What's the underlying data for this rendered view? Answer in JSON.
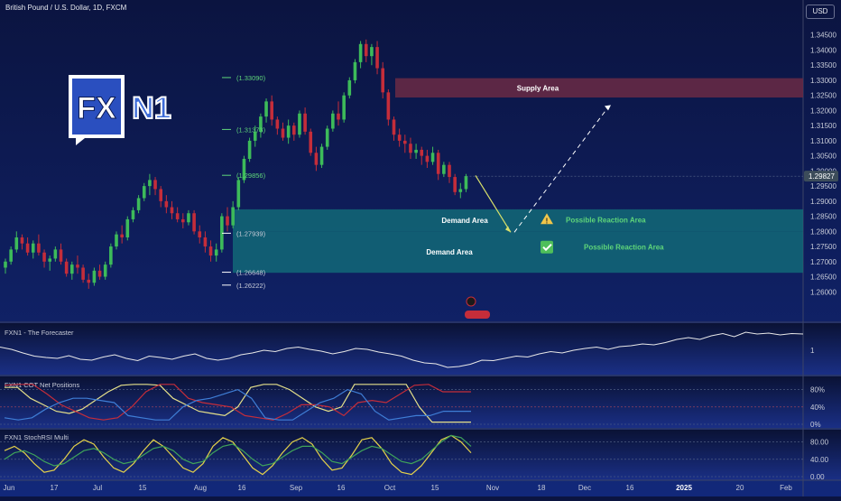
{
  "header": {
    "title": "British Pound / U.S. Dollar, 1D, FXCM",
    "currency_button": "USD"
  },
  "colors": {
    "up": "#3dbb5a",
    "down": "#c42d3a",
    "fib": "#5fd67a",
    "demand": "#13737b",
    "supply": "#6b2a44",
    "bg_top": "#0b1440",
    "bg_bottom": "#12287a"
  },
  "logo": {
    "fx": "FX",
    "n1": "N1"
  },
  "chart_data": [
    {
      "type": "candlestick",
      "title": "British Pound / U.S. Dollar, 1D, FXCM",
      "y_axis": {
        "min": 1.255,
        "max": 1.35,
        "ticks": [
          "1.34500",
          "1.34000",
          "1.33500",
          "1.33000",
          "1.32500",
          "1.32000",
          "1.31500",
          "1.31000",
          "1.30500",
          "1.30000",
          "1.29500",
          "1.29000",
          "1.28500",
          "1.28000",
          "1.27500",
          "1.27000",
          "1.26500",
          "1.26000"
        ]
      },
      "last_price": "1.29827",
      "fib_levels": [
        "(1.33090)",
        "(1.31373)",
        "(1.29856)",
        "(1.27939)",
        "(1.26648)",
        "(1.26222)"
      ],
      "zones": [
        {
          "label": "Supply Area",
          "from": 1.3243,
          "to": 1.3307
        },
        {
          "label": "Demand Area",
          "from": 1.28,
          "to": 1.2873
        },
        {
          "label": "Demand Area",
          "from": 1.2663,
          "to": 1.28
        }
      ],
      "reaction_labels": [
        "Possible Reaction Area",
        "Possible Reaction Area"
      ],
      "candles": [
        [
          1.268,
          1.271,
          1.266,
          1.27
        ],
        [
          1.27,
          1.275,
          1.269,
          1.274
        ],
        [
          1.274,
          1.28,
          1.273,
          1.278
        ],
        [
          1.278,
          1.279,
          1.274,
          1.276
        ],
        [
          1.276,
          1.278,
          1.272,
          1.273
        ],
        [
          1.273,
          1.277,
          1.271,
          1.276
        ],
        [
          1.276,
          1.279,
          1.272,
          1.273
        ],
        [
          1.273,
          1.274,
          1.268,
          1.27
        ],
        [
          1.27,
          1.272,
          1.267,
          1.271
        ],
        [
          1.271,
          1.275,
          1.27,
          1.274
        ],
        [
          1.274,
          1.276,
          1.269,
          1.27
        ],
        [
          1.27,
          1.271,
          1.265,
          1.266
        ],
        [
          1.266,
          1.27,
          1.264,
          1.269
        ],
        [
          1.269,
          1.272,
          1.266,
          1.268
        ],
        [
          1.268,
          1.269,
          1.263,
          1.264
        ],
        [
          1.264,
          1.266,
          1.261,
          1.263
        ],
        [
          1.263,
          1.268,
          1.262,
          1.267
        ],
        [
          1.267,
          1.269,
          1.264,
          1.265
        ],
        [
          1.265,
          1.27,
          1.264,
          1.269
        ],
        [
          1.269,
          1.276,
          1.268,
          1.275
        ],
        [
          1.275,
          1.28,
          1.274,
          1.279
        ],
        [
          1.279,
          1.282,
          1.276,
          1.278
        ],
        [
          1.278,
          1.285,
          1.277,
          1.284
        ],
        [
          1.284,
          1.288,
          1.283,
          1.287
        ],
        [
          1.287,
          1.292,
          1.286,
          1.291
        ],
        [
          1.291,
          1.296,
          1.29,
          1.295
        ],
        [
          1.295,
          1.299,
          1.292,
          1.297
        ],
        [
          1.297,
          1.298,
          1.292,
          1.294
        ],
        [
          1.294,
          1.295,
          1.288,
          1.29
        ],
        [
          1.29,
          1.292,
          1.286,
          1.288
        ],
        [
          1.288,
          1.29,
          1.284,
          1.286
        ],
        [
          1.286,
          1.288,
          1.283,
          1.284
        ],
        [
          1.284,
          1.286,
          1.281,
          1.283
        ],
        [
          1.283,
          1.287,
          1.282,
          1.286
        ],
        [
          1.286,
          1.287,
          1.279,
          1.28
        ],
        [
          1.28,
          1.282,
          1.276,
          1.278
        ],
        [
          1.278,
          1.28,
          1.273,
          1.275
        ],
        [
          1.275,
          1.277,
          1.27,
          1.272
        ],
        [
          1.272,
          1.276,
          1.27,
          1.274
        ],
        [
          1.274,
          1.286,
          1.273,
          1.285
        ],
        [
          1.285,
          1.288,
          1.28,
          1.282
        ],
        [
          1.282,
          1.29,
          1.281,
          1.288
        ],
        [
          1.288,
          1.298,
          1.287,
          1.297
        ],
        [
          1.297,
          1.305,
          1.296,
          1.304
        ],
        [
          1.304,
          1.311,
          1.303,
          1.31
        ],
        [
          1.31,
          1.315,
          1.308,
          1.313
        ],
        [
          1.313,
          1.319,
          1.311,
          1.318
        ],
        [
          1.318,
          1.324,
          1.316,
          1.323
        ],
        [
          1.323,
          1.325,
          1.315,
          1.317
        ],
        [
          1.317,
          1.318,
          1.312,
          1.314
        ],
        [
          1.314,
          1.316,
          1.31,
          1.311
        ],
        [
          1.311,
          1.317,
          1.309,
          1.315
        ],
        [
          1.315,
          1.316,
          1.31,
          1.312
        ],
        [
          1.312,
          1.32,
          1.311,
          1.319
        ],
        [
          1.319,
          1.321,
          1.312,
          1.313
        ],
        [
          1.313,
          1.314,
          1.305,
          1.306
        ],
        [
          1.306,
          1.308,
          1.3,
          1.302
        ],
        [
          1.302,
          1.309,
          1.301,
          1.308
        ],
        [
          1.308,
          1.315,
          1.307,
          1.314
        ],
        [
          1.314,
          1.32,
          1.313,
          1.319
        ],
        [
          1.319,
          1.323,
          1.315,
          1.317
        ],
        [
          1.317,
          1.326,
          1.316,
          1.325
        ],
        [
          1.325,
          1.331,
          1.324,
          1.33
        ],
        [
          1.33,
          1.337,
          1.329,
          1.336
        ],
        [
          1.336,
          1.343,
          1.334,
          1.342
        ],
        [
          1.342,
          1.3435,
          1.336,
          1.338
        ],
        [
          1.338,
          1.342,
          1.335,
          1.341
        ],
        [
          1.341,
          1.343,
          1.332,
          1.334
        ],
        [
          1.334,
          1.336,
          1.324,
          1.326
        ],
        [
          1.326,
          1.327,
          1.315,
          1.317
        ],
        [
          1.317,
          1.318,
          1.31,
          1.312
        ],
        [
          1.312,
          1.314,
          1.308,
          1.31
        ],
        [
          1.31,
          1.312,
          1.306,
          1.309
        ],
        [
          1.309,
          1.311,
          1.304,
          1.306
        ],
        [
          1.306,
          1.309,
          1.304,
          1.307
        ],
        [
          1.307,
          1.308,
          1.302,
          1.305
        ],
        [
          1.305,
          1.307,
          1.301,
          1.303
        ],
        [
          1.303,
          1.308,
          1.302,
          1.306
        ],
        [
          1.306,
          1.307,
          1.297,
          1.299
        ],
        [
          1.299,
          1.303,
          1.298,
          1.302
        ],
        [
          1.302,
          1.303,
          1.296,
          1.298
        ],
        [
          1.298,
          1.299,
          1.292,
          1.293
        ],
        [
          1.293,
          1.296,
          1.291,
          1.294
        ],
        [
          1.294,
          1.299,
          1.293,
          1.2983
        ]
      ],
      "x_labels": [
        "Jun",
        "17",
        "Jul",
        "15",
        "Aug",
        "16",
        "Sep",
        "16",
        "Oct",
        "15",
        "Nov",
        "18",
        "Dec",
        "16",
        "2025",
        "20",
        "Feb"
      ]
    },
    {
      "type": "line",
      "title": "FXN1 - The Forecaster",
      "axis_label": "1",
      "series": [
        {
          "values": [
            0.55,
            0.5,
            0.42,
            0.35,
            0.32,
            0.3,
            0.36,
            0.28,
            0.26,
            0.33,
            0.38,
            0.3,
            0.25,
            0.35,
            0.32,
            0.28,
            0.35,
            0.4,
            0.3,
            0.26,
            0.3,
            0.38,
            0.42,
            0.48,
            0.45,
            0.52,
            0.55,
            0.5,
            0.46,
            0.4,
            0.45,
            0.52,
            0.5,
            0.44,
            0.4,
            0.35,
            0.26,
            0.2,
            0.18,
            0.1,
            0.12,
            0.17,
            0.26,
            0.25,
            0.3,
            0.35,
            0.33,
            0.4,
            0.45,
            0.42,
            0.48,
            0.52,
            0.55,
            0.5,
            0.56,
            0.58,
            0.62,
            0.6,
            0.65,
            0.72,
            0.76,
            0.72,
            0.8,
            0.85,
            0.78,
            0.88,
            0.84,
            0.86,
            0.82,
            0.85,
            0.84
          ]
        }
      ]
    },
    {
      "type": "line",
      "title": "FXN1 COT Net Positions",
      "y_ticks": [
        "80%",
        "40%",
        "0%"
      ],
      "series": [
        {
          "name": "",
          "color": "#e5e08a",
          "values": [
            0.85,
            0.85,
            0.6,
            0.45,
            0.3,
            0.25,
            0.35,
            0.55,
            0.75,
            0.9,
            0.92,
            0.92,
            0.9,
            0.6,
            0.45,
            0.3,
            0.25,
            0.2,
            0.4,
            0.85,
            0.92,
            0.92,
            0.8,
            0.6,
            0.4,
            0.3,
            0.4,
            0.92,
            0.92,
            0.92,
            0.92,
            0.92,
            0.4,
            0.05,
            0.05,
            0.05,
            0.05
          ]
        },
        {
          "name": "",
          "color": "#c42d3a",
          "values": [
            0.9,
            0.92,
            0.92,
            0.7,
            0.45,
            0.3,
            0.15,
            0.1,
            0.15,
            0.4,
            0.75,
            0.92,
            0.92,
            0.6,
            0.5,
            0.45,
            0.4,
            0.2,
            0.15,
            0.1,
            0.25,
            0.45,
            0.45,
            0.4,
            0.2,
            0.5,
            0.55,
            0.5,
            0.7,
            0.9,
            0.92,
            0.75,
            0.75,
            0.75
          ]
        },
        {
          "name": "",
          "color": "#3f7ed6",
          "values": [
            0.15,
            0.1,
            0.15,
            0.35,
            0.5,
            0.6,
            0.6,
            0.55,
            0.5,
            0.2,
            0.15,
            0.1,
            0.1,
            0.4,
            0.55,
            0.6,
            0.7,
            0.8,
            0.6,
            0.15,
            0.1,
            0.1,
            0.3,
            0.5,
            0.6,
            0.8,
            0.7,
            0.3,
            0.1,
            0.15,
            0.2,
            0.2,
            0.3,
            0.3,
            0.3
          ]
        }
      ]
    },
    {
      "type": "line",
      "title": "FXN1 StochRSI Multi",
      "y_ticks": [
        "80.00",
        "40.00",
        "0.00"
      ],
      "series": [
        {
          "name": "",
          "color": "#e5d24a",
          "values": [
            60,
            70,
            55,
            30,
            10,
            15,
            40,
            70,
            85,
            75,
            45,
            20,
            10,
            30,
            60,
            85,
            70,
            45,
            20,
            10,
            30,
            70,
            90,
            80,
            50,
            20,
            5,
            25,
            55,
            80,
            90,
            75,
            40,
            15,
            20,
            50,
            85,
            90,
            65,
            30,
            10,
            5,
            25,
            55,
            85,
            95,
            80,
            55
          ]
        },
        {
          "name": "",
          "color": "#3fa35a",
          "values": [
            40,
            55,
            60,
            50,
            35,
            25,
            30,
            45,
            60,
            65,
            55,
            40,
            30,
            35,
            50,
            65,
            70,
            60,
            40,
            30,
            35,
            55,
            70,
            75,
            60,
            40,
            25,
            30,
            45,
            60,
            70,
            70,
            55,
            35,
            30,
            45,
            60,
            70,
            65,
            50,
            35,
            30,
            40,
            60,
            80,
            95,
            90,
            70
          ]
        }
      ]
    }
  ]
}
